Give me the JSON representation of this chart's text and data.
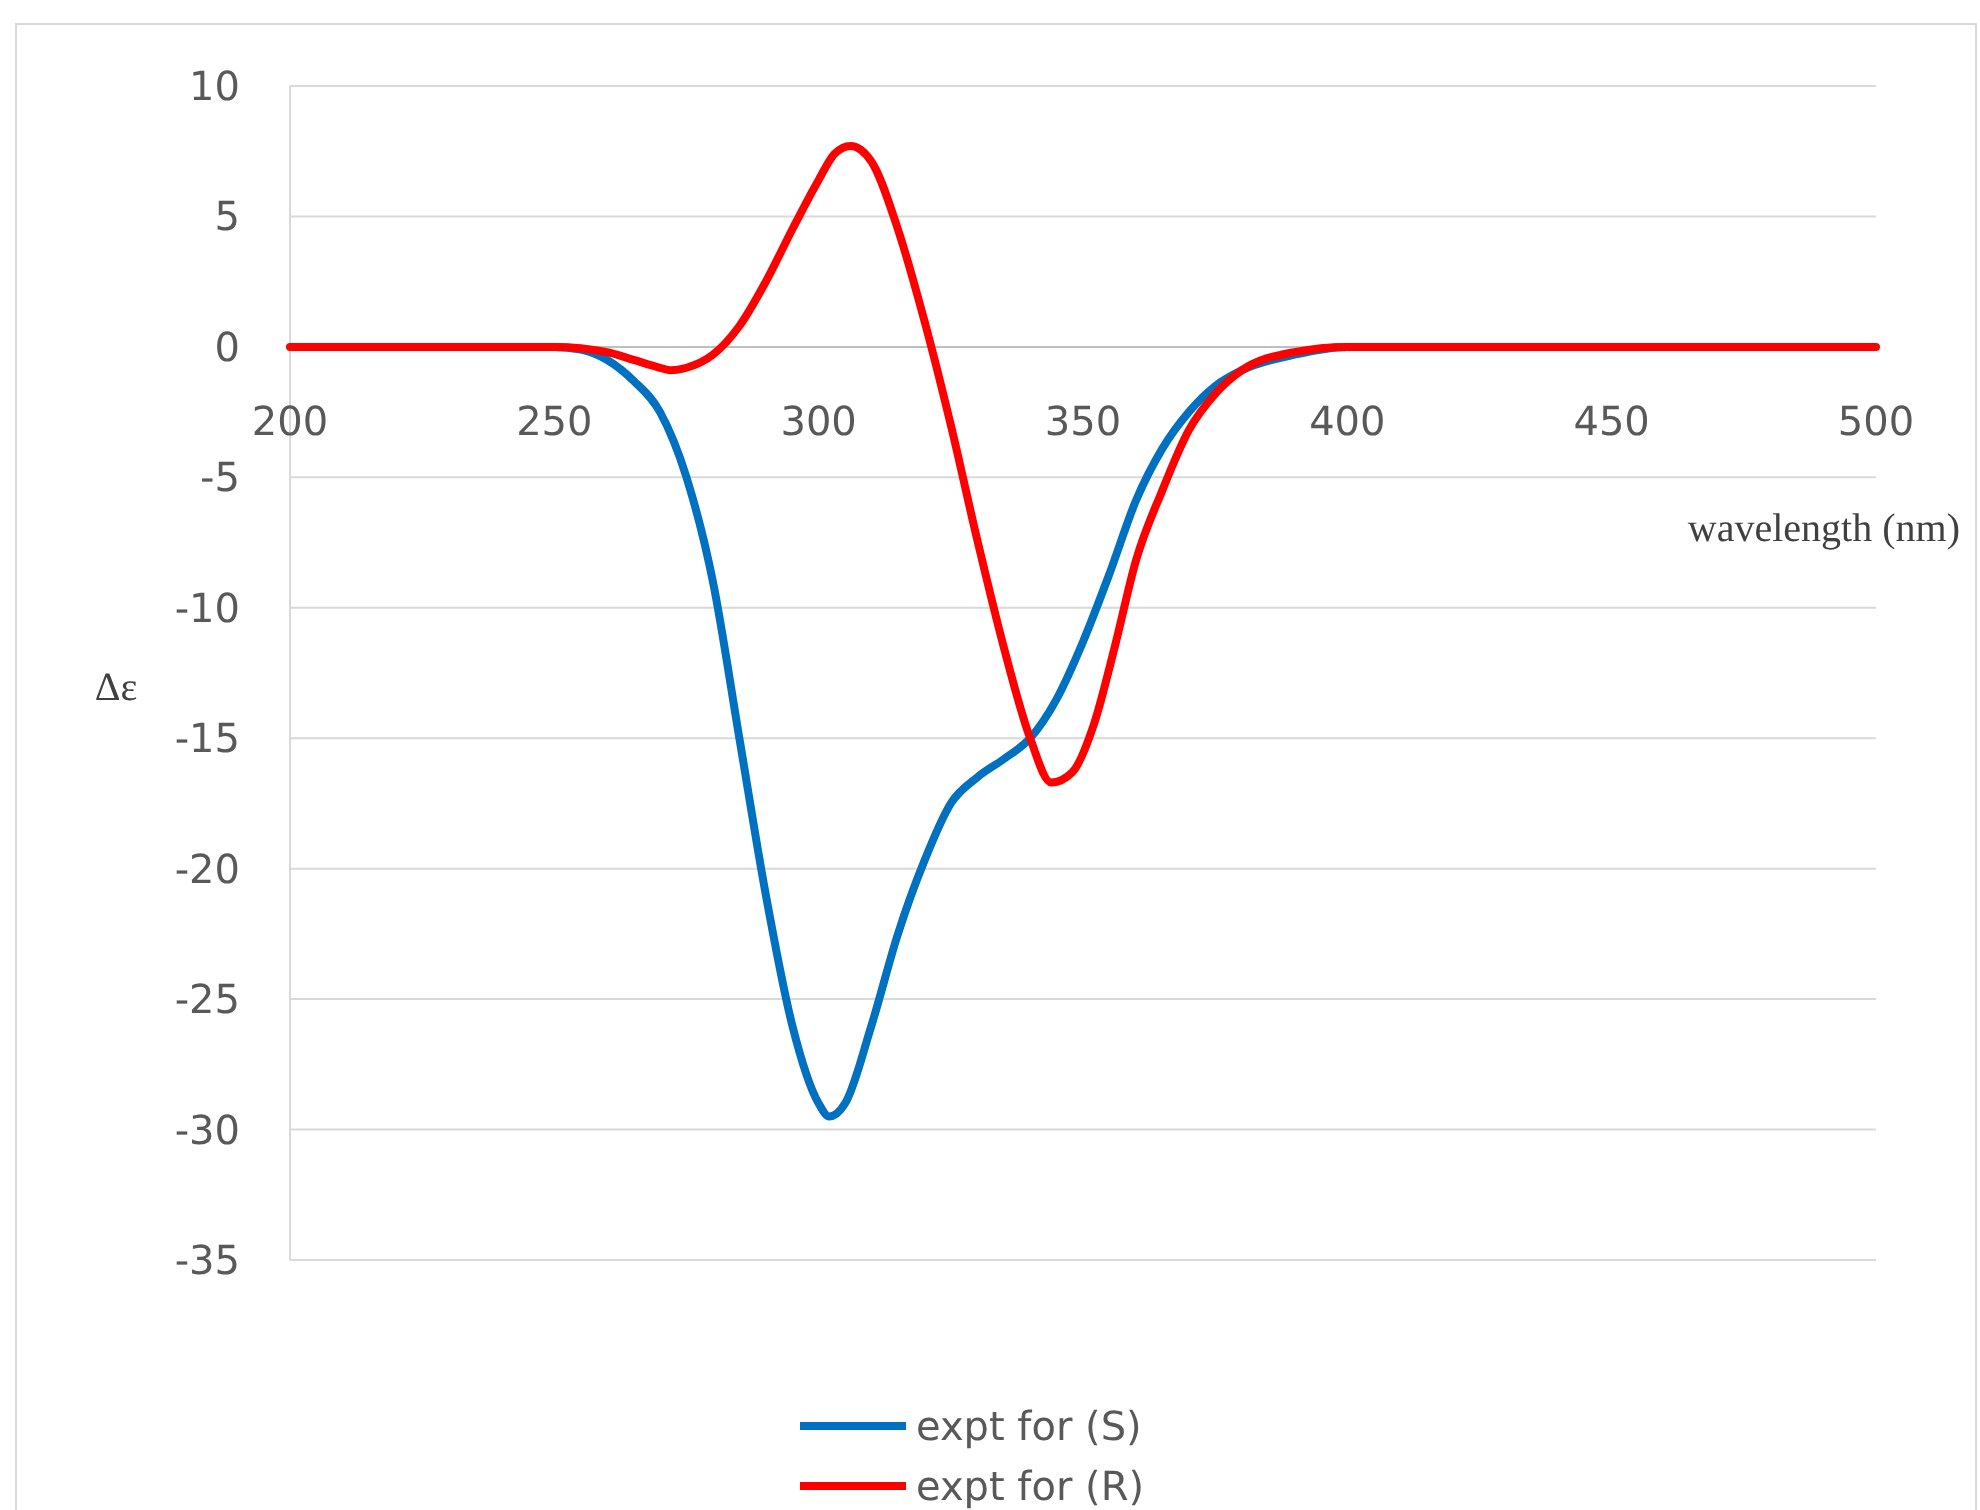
{
  "chart_data": {
    "type": "line",
    "xlabel": "wavelength (nm)",
    "ylabel": "Δε",
    "xlim": [
      200,
      500
    ],
    "xticks": [
      200,
      250,
      300,
      350,
      400,
      450,
      500
    ],
    "ylim": [
      -35,
      10
    ],
    "yticks": [
      -35,
      -30,
      -25,
      -20,
      -15,
      -10,
      -5,
      0,
      5,
      10
    ],
    "grid": "y",
    "legend": "bottom",
    "line_style": "solid",
    "series": [
      {
        "name": "expt for (S)",
        "color": "#0070c0",
        "x": [
          240,
          250,
          255,
          260,
          265,
          270,
          275,
          280,
          285,
          290,
          295,
          300,
          302,
          305,
          310,
          315,
          320,
          325,
          330,
          335,
          340,
          345,
          350,
          355,
          360,
          365,
          370,
          375,
          380,
          390,
          400,
          420
        ],
        "values": [
          0,
          0,
          -0.1,
          -0.5,
          -1.3,
          -2.5,
          -5,
          -9,
          -15,
          -21,
          -26,
          -29,
          -29.5,
          -29,
          -26,
          -22.5,
          -19.7,
          -17.5,
          -16.5,
          -15.8,
          -15,
          -13.5,
          -11.3,
          -8.7,
          -5.9,
          -3.9,
          -2.5,
          -1.5,
          -0.9,
          -0.3,
          0,
          0
        ]
      },
      {
        "name": "expt for (R)",
        "color": "#ff0000",
        "x": [
          200,
          220,
          240,
          250,
          260,
          265,
          270,
          272,
          275,
          280,
          285,
          290,
          295,
          300,
          303,
          306,
          310,
          315,
          320,
          325,
          330,
          335,
          340,
          344,
          348,
          352,
          356,
          360,
          365,
          370,
          375,
          380,
          390,
          400,
          420,
          450,
          500
        ],
        "values": [
          0,
          0,
          0,
          0,
          -0.2,
          -0.5,
          -0.8,
          -0.9,
          -0.8,
          -0.3,
          0.8,
          2.5,
          4.5,
          6.4,
          7.4,
          7.7,
          7.1,
          4.5,
          1,
          -3,
          -7.4,
          -11.5,
          -15,
          -16.7,
          -16.3,
          -14.5,
          -11.5,
          -8.2,
          -5.5,
          -3.2,
          -1.8,
          -0.9,
          -0.2,
          0,
          0,
          0,
          0
        ]
      }
    ]
  }
}
